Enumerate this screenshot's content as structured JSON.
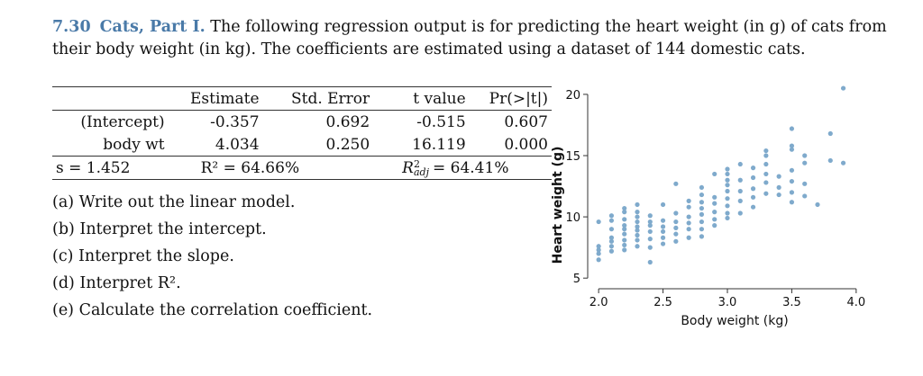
{
  "header": {
    "number": "7.30",
    "title": "Cats, Part I.",
    "text": "The following regression output is for predicting the heart weight (in g) of cats from their body weight (in kg). The coefficients are estimated using a dataset of 144 domestic cats."
  },
  "regression_table": {
    "headers": [
      "",
      "Estimate",
      "Std. Error",
      "t value",
      "Pr(>|t|)"
    ],
    "rows": [
      {
        "label": "(Intercept)",
        "estimate": "-0.357",
        "se": "0.692",
        "t": "-0.515",
        "p": "0.607"
      },
      {
        "label": "body wt",
        "estimate": "4.034",
        "se": "0.250",
        "t": "16.119",
        "p": "0.000"
      }
    ],
    "fit": {
      "s": "s = 1.452",
      "r2": "R² = 64.66%",
      "r2_adj": "= 64.41%"
    }
  },
  "questions": [
    "(a) Write out the linear model.",
    "(b) Interpret the intercept.",
    "(c) Interpret the slope.",
    "(d) Interpret R².",
    "(e) Calculate the correlation coefficient."
  ],
  "chart_data": {
    "type": "scatter",
    "xlabel": "Body weight (kg)",
    "ylabel": "Heart weight (g)",
    "xlim": [
      1.95,
      4.05
    ],
    "ylim": [
      4.5,
      20.8
    ],
    "x_ticks": [
      2.0,
      2.5,
      3.0,
      3.5,
      4.0
    ],
    "x_tick_labels": [
      "2.0",
      "2.5",
      "3.0",
      "3.5",
      "4.0"
    ],
    "y_ticks": [
      5,
      10,
      15,
      20
    ],
    "y_tick_labels": [
      "5",
      "10",
      "15",
      "20"
    ],
    "point_color": "#7faacc",
    "points": [
      [
        2.0,
        6.5
      ],
      [
        2.0,
        7.0
      ],
      [
        2.0,
        7.3
      ],
      [
        2.0,
        7.6
      ],
      [
        2.0,
        9.6
      ],
      [
        2.1,
        7.2
      ],
      [
        2.1,
        7.6
      ],
      [
        2.1,
        8.0
      ],
      [
        2.1,
        8.3
      ],
      [
        2.1,
        9.0
      ],
      [
        2.1,
        9.7
      ],
      [
        2.1,
        10.1
      ],
      [
        2.2,
        7.3
      ],
      [
        2.2,
        7.7
      ],
      [
        2.2,
        8.1
      ],
      [
        2.2,
        8.6
      ],
      [
        2.2,
        9.0
      ],
      [
        2.2,
        9.3
      ],
      [
        2.2,
        9.8
      ],
      [
        2.2,
        10.4
      ],
      [
        2.2,
        10.7
      ],
      [
        2.3,
        7.6
      ],
      [
        2.3,
        8.1
      ],
      [
        2.3,
        8.5
      ],
      [
        2.3,
        8.9
      ],
      [
        2.3,
        9.2
      ],
      [
        2.3,
        9.6
      ],
      [
        2.3,
        10.0
      ],
      [
        2.3,
        10.4
      ],
      [
        2.3,
        11.0
      ],
      [
        2.4,
        6.3
      ],
      [
        2.4,
        7.5
      ],
      [
        2.4,
        8.2
      ],
      [
        2.4,
        8.8
      ],
      [
        2.4,
        9.3
      ],
      [
        2.4,
        9.6
      ],
      [
        2.4,
        10.1
      ],
      [
        2.5,
        7.8
      ],
      [
        2.5,
        8.3
      ],
      [
        2.5,
        8.8
      ],
      [
        2.5,
        9.2
      ],
      [
        2.5,
        9.7
      ],
      [
        2.5,
        11.0
      ],
      [
        2.6,
        8.0
      ],
      [
        2.6,
        8.6
      ],
      [
        2.6,
        9.1
      ],
      [
        2.6,
        9.6
      ],
      [
        2.6,
        10.3
      ],
      [
        2.6,
        12.7
      ],
      [
        2.7,
        8.3
      ],
      [
        2.7,
        9.0
      ],
      [
        2.7,
        9.5
      ],
      [
        2.7,
        10.0
      ],
      [
        2.7,
        10.8
      ],
      [
        2.7,
        11.3
      ],
      [
        2.8,
        8.4
      ],
      [
        2.8,
        9.0
      ],
      [
        2.8,
        9.6
      ],
      [
        2.8,
        10.2
      ],
      [
        2.8,
        10.7
      ],
      [
        2.8,
        11.2
      ],
      [
        2.8,
        11.8
      ],
      [
        2.8,
        12.4
      ],
      [
        2.9,
        9.3
      ],
      [
        2.9,
        9.8
      ],
      [
        2.9,
        10.4
      ],
      [
        2.9,
        11.1
      ],
      [
        2.9,
        11.6
      ],
      [
        2.9,
        13.5
      ],
      [
        3.0,
        9.9
      ],
      [
        3.0,
        10.3
      ],
      [
        3.0,
        10.9
      ],
      [
        3.0,
        11.5
      ],
      [
        3.0,
        12.1
      ],
      [
        3.0,
        12.6
      ],
      [
        3.0,
        13.0
      ],
      [
        3.0,
        13.5
      ],
      [
        3.0,
        13.9
      ],
      [
        3.1,
        10.3
      ],
      [
        3.1,
        11.3
      ],
      [
        3.1,
        12.1
      ],
      [
        3.1,
        13.0
      ],
      [
        3.1,
        14.3
      ],
      [
        3.2,
        10.8
      ],
      [
        3.2,
        11.6
      ],
      [
        3.2,
        12.3
      ],
      [
        3.2,
        13.2
      ],
      [
        3.2,
        14.0
      ],
      [
        3.3,
        11.9
      ],
      [
        3.3,
        12.8
      ],
      [
        3.3,
        13.5
      ],
      [
        3.3,
        14.3
      ],
      [
        3.3,
        15.0
      ],
      [
        3.3,
        15.4
      ],
      [
        3.4,
        11.8
      ],
      [
        3.4,
        12.4
      ],
      [
        3.4,
        13.3
      ],
      [
        3.5,
        11.2
      ],
      [
        3.5,
        12.0
      ],
      [
        3.5,
        12.9
      ],
      [
        3.5,
        13.8
      ],
      [
        3.5,
        15.5
      ],
      [
        3.5,
        15.8
      ],
      [
        3.5,
        17.2
      ],
      [
        3.6,
        11.7
      ],
      [
        3.6,
        12.7
      ],
      [
        3.6,
        14.4
      ],
      [
        3.6,
        15.0
      ],
      [
        3.7,
        11.0
      ],
      [
        3.8,
        14.6
      ],
      [
        3.8,
        16.8
      ],
      [
        3.9,
        14.4
      ],
      [
        3.9,
        20.5
      ]
    ]
  }
}
